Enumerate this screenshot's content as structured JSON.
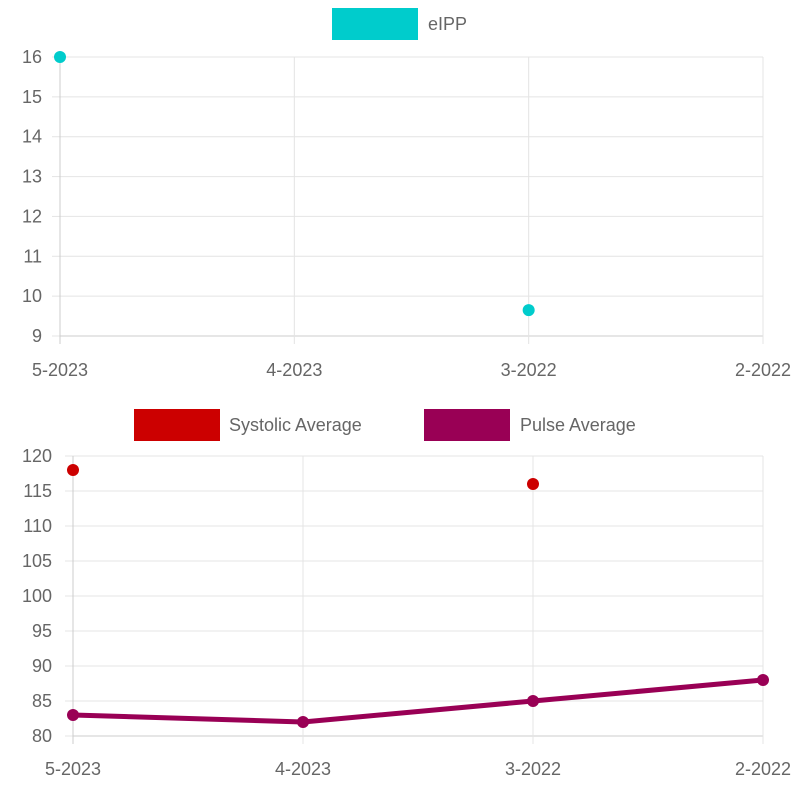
{
  "chart_data": [
    {
      "type": "scatter",
      "categories": [
        "5-2023",
        "4-2023",
        "3-2022",
        "2-2022"
      ],
      "series": [
        {
          "name": "eIPP",
          "color": "#00cccc",
          "values": [
            16,
            null,
            9.65,
            null
          ]
        }
      ],
      "ylim": [
        9,
        16
      ],
      "yticks": [
        9,
        10,
        11,
        12,
        13,
        14,
        15,
        16
      ],
      "grid": true,
      "legend": "top"
    },
    {
      "type": "line",
      "categories": [
        "5-2023",
        "4-2023",
        "3-2022",
        "2-2022"
      ],
      "series": [
        {
          "name": "Systolic Average",
          "color": "#cc0000",
          "mode": "points",
          "values": [
            118,
            null,
            116,
            null
          ]
        },
        {
          "name": "Pulse Average",
          "color": "#990055",
          "mode": "line",
          "values": [
            83,
            82,
            85,
            88
          ]
        }
      ],
      "ylim": [
        80,
        120
      ],
      "yticks": [
        80,
        85,
        90,
        95,
        100,
        105,
        110,
        115,
        120
      ],
      "grid": true,
      "legend": "top"
    }
  ]
}
